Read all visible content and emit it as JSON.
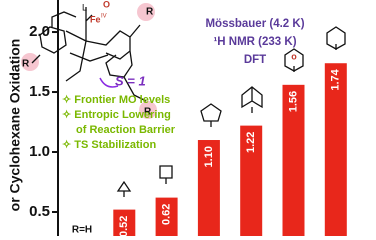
{
  "chart_data": {
    "type": "bar",
    "y_label": "or Cyclohexane Oxidation",
    "categories": [
      "R=H",
      null,
      null,
      null,
      null,
      null,
      null
    ],
    "values": [
      null,
      0.52,
      0.62,
      1.1,
      1.22,
      1.56,
      1.74
    ],
    "value_labels": [
      null,
      "0.52",
      "0.62",
      "1.10",
      "1.22",
      "1.56",
      "1.74"
    ],
    "color": "#e8271b",
    "ylim": [
      0.3,
      2.267
    ],
    "yticks": [
      0.5,
      {
        "value": 1,
        "label": "1.0"
      },
      1.5,
      {
        "value": 2,
        "label": "2.0"
      }
    ],
    "annotations": {
      "spin": "S = 1",
      "bullets": [
        "✧ Frontier MO levels",
        "✧ Entropic Lowering",
        "of Reaction Barrier",
        "✧ TS Stabilization"
      ],
      "methods": [
        "Mössbauer (4.2 K)",
        "¹H NMR (233 K)",
        "DFT"
      ],
      "molecule": [
        "L",
        "Fe",
        "IV",
        "O",
        "R",
        "R",
        "R"
      ]
    }
  }
}
